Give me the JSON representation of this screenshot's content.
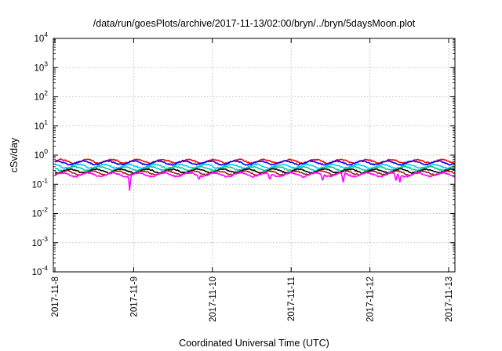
{
  "chart_data": {
    "type": "line",
    "title": "/data/run/goesPlots/archive/2017-11-13/02:00/bryn/../bryn/5daysMoon.plot",
    "xlabel": "Coordinated Universal Time (UTC)",
    "ylabel": "cSv/day",
    "yscale": "log",
    "ylim": [
      0.0001,
      10000
    ],
    "xlim": [
      "2017-11-08",
      "2017-11-13 02:00"
    ],
    "grid": true,
    "y_ticks": [
      {
        "base": "10",
        "exp": "-4"
      },
      {
        "base": "10",
        "exp": "-3"
      },
      {
        "base": "10",
        "exp": "-2"
      },
      {
        "base": "10",
        "exp": "-1"
      },
      {
        "base": "10",
        "exp": "0"
      },
      {
        "base": "10",
        "exp": "1"
      },
      {
        "base": "10",
        "exp": "2"
      },
      {
        "base": "10",
        "exp": "3"
      },
      {
        "base": "10",
        "exp": "4"
      }
    ],
    "x_ticks": [
      "2017-11-8",
      "2017-11-9",
      "2017-11-10",
      "2017-11-11",
      "2017-11-12",
      "2017-11-13"
    ],
    "series": [
      {
        "color": "#ff0000",
        "level": 0.62,
        "spikes": []
      },
      {
        "color": "#0000ff",
        "level": 0.55,
        "spikes": []
      },
      {
        "color": "#00c8ff",
        "level": 0.42,
        "spikes": []
      },
      {
        "color": "#00cc99",
        "level": 0.35,
        "spikes": []
      },
      {
        "color": "#000000",
        "level": 0.29,
        "spikes": []
      },
      {
        "color": "#9a1f1f",
        "level": 0.25,
        "spikes": []
      },
      {
        "color": "#ff00ff",
        "level": 0.215,
        "spikes": [
          {
            "day": 0.95,
            "value": 0.045
          },
          {
            "day": 1.83,
            "value": 0.13
          },
          {
            "day": 2.73,
            "value": 0.13
          },
          {
            "day": 3.4,
            "value": 0.12
          },
          {
            "day": 3.66,
            "value": 0.12
          },
          {
            "day": 4.33,
            "value": 0.13
          },
          {
            "day": 4.38,
            "value": 0.12
          }
        ]
      }
    ]
  }
}
